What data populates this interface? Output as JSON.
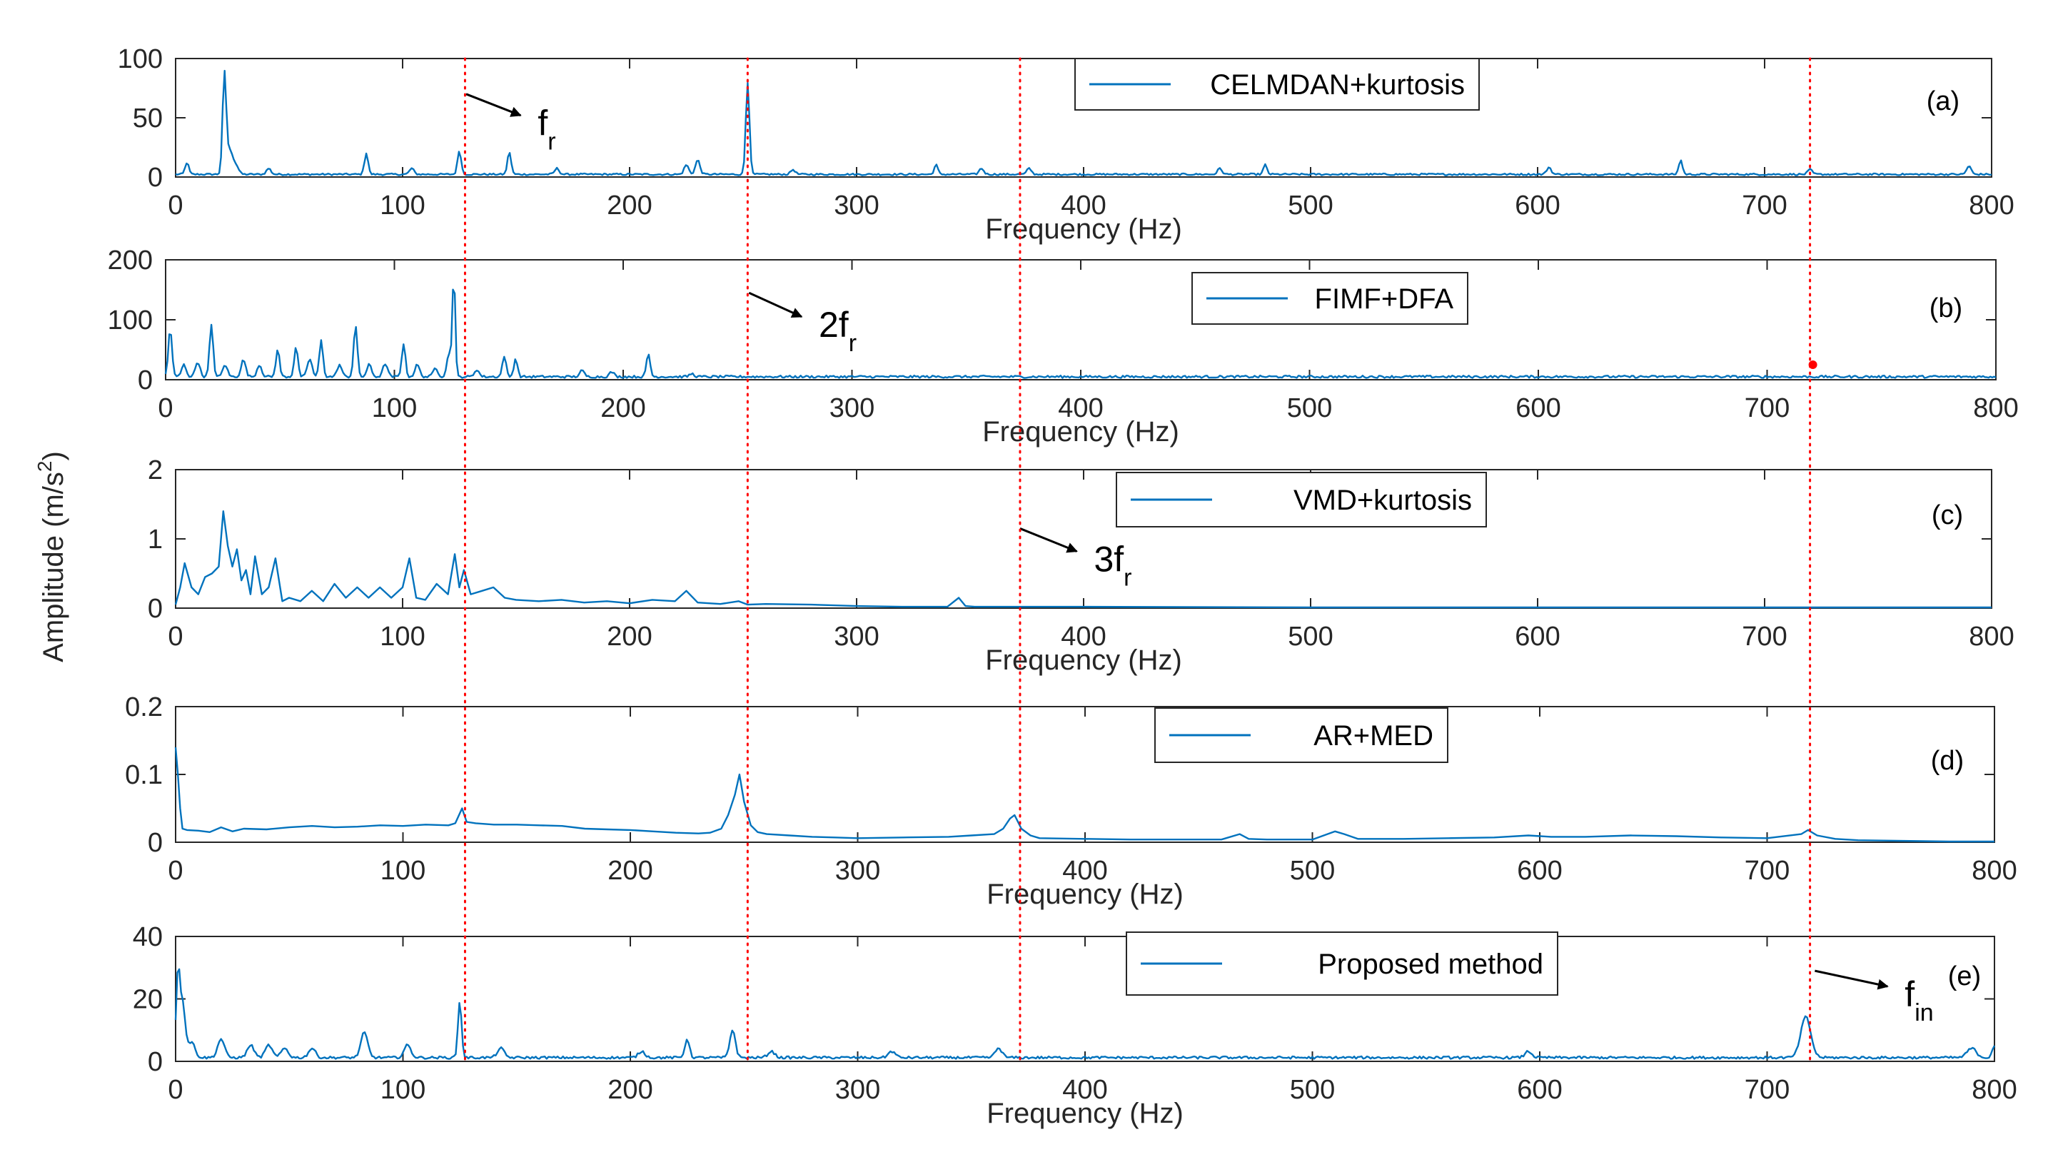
{
  "chart_data": {
    "type": "line",
    "ylabel": "Amplitude (m/s",
    "ylabel_sup": "2",
    "ylabel_close": ")",
    "series_color": "#0072BD",
    "marker_line_color": "#FF0000",
    "marker_lines_x": [
      127.5,
      252,
      372,
      720
    ],
    "panels": [
      {
        "id": "a",
        "tag": "(a)",
        "legend": "CELMDAN+kurtosis",
        "xlabel": "Frequency (Hz)",
        "xlim": [
          0,
          800
        ],
        "ylim": [
          0,
          100
        ],
        "xticks": [
          0,
          100,
          200,
          300,
          400,
          500,
          600,
          700,
          800
        ],
        "yticks": [
          0,
          50,
          100
        ],
        "baseline": 1.5,
        "noise": 1.5,
        "peaks": [
          [
            5,
            10,
            0.8
          ],
          [
            21.5,
            82,
            0.8
          ],
          [
            24,
            20,
            1.5
          ],
          [
            27,
            5,
            1
          ],
          [
            41,
            5,
            1
          ],
          [
            84,
            18,
            0.8
          ],
          [
            104,
            5,
            1
          ],
          [
            125,
            20,
            0.8
          ],
          [
            147,
            19,
            0.8
          ],
          [
            168,
            5,
            1
          ],
          [
            225,
            8,
            1
          ],
          [
            230,
            12,
            1
          ],
          [
            252,
            78,
            0.8
          ],
          [
            272,
            4,
            1
          ],
          [
            335,
            8,
            0.8
          ],
          [
            355,
            5,
            1
          ],
          [
            376,
            5,
            1
          ],
          [
            460,
            5,
            1
          ],
          [
            480,
            8,
            0.8
          ],
          [
            605,
            6,
            1
          ],
          [
            663,
            12,
            0.8
          ],
          [
            720,
            4,
            1
          ],
          [
            790,
            7,
            1
          ]
        ],
        "annotation": {
          "text": "f",
          "sub": "r",
          "arrow_from": [
            128,
            70
          ],
          "arrow_to": [
            152,
            52
          ]
        }
      },
      {
        "id": "b",
        "tag": "(b)",
        "legend": "FIMF+DFA",
        "xlabel": "Frequency (Hz)",
        "xlim": [
          0,
          800
        ],
        "ylim": [
          0,
          200
        ],
        "xticks": [
          0,
          100,
          200,
          300,
          400,
          500,
          600,
          700,
          800
        ],
        "yticks": [
          0,
          100,
          200
        ],
        "baseline": 3,
        "noise": 4,
        "peaks": [
          [
            2,
            80,
            0.8
          ],
          [
            8,
            20,
            1
          ],
          [
            14,
            25,
            1
          ],
          [
            20,
            85,
            0.8
          ],
          [
            26,
            20,
            1
          ],
          [
            34,
            28,
            1
          ],
          [
            41,
            20,
            1
          ],
          [
            49,
            45,
            0.8
          ],
          [
            57,
            50,
            0.8
          ],
          [
            63,
            30,
            1
          ],
          [
            68,
            60,
            0.8
          ],
          [
            76,
            20,
            1
          ],
          [
            83,
            85,
            0.8
          ],
          [
            89,
            20,
            1
          ],
          [
            96,
            22,
            1
          ],
          [
            104,
            55,
            0.8
          ],
          [
            110,
            20,
            1
          ],
          [
            118,
            15,
            1
          ],
          [
            124,
            40,
            1
          ],
          [
            126,
            170,
            0.6
          ],
          [
            136,
            12,
            1
          ],
          [
            148,
            35,
            0.8
          ],
          [
            153,
            30,
            0.8
          ],
          [
            182,
            10,
            1
          ],
          [
            195,
            8,
            1
          ],
          [
            211,
            38,
            0.8
          ],
          [
            230,
            5,
            1
          ]
        ],
        "dot": [
          720,
          25
        ],
        "annotation": {
          "text": "2f",
          "sub": "r",
          "arrow_from": [
            255,
            145
          ],
          "arrow_to": [
            278,
            105
          ]
        }
      },
      {
        "id": "c",
        "tag": "(c)",
        "legend": "VMD+kurtosis",
        "xlabel": "Frequency (Hz)",
        "xlim": [
          0,
          800
        ],
        "ylim": [
          0,
          2
        ],
        "xticks": [
          0,
          100,
          200,
          300,
          400,
          500,
          600,
          700,
          800
        ],
        "yticks": [
          0,
          1,
          2
        ],
        "x": [
          0,
          2,
          4,
          7,
          10,
          13,
          16,
          19,
          21,
          23,
          25,
          27,
          29,
          31,
          33,
          35,
          38,
          41,
          44,
          47,
          50,
          55,
          60,
          65,
          70,
          75,
          80,
          85,
          90,
          95,
          100,
          103,
          106,
          110,
          115,
          120,
          123,
          125,
          127,
          130,
          135,
          140,
          145,
          150,
          160,
          170,
          180,
          190,
          200,
          210,
          220,
          225,
          230,
          240,
          248,
          252,
          260,
          280,
          300,
          320,
          340,
          345,
          348,
          352,
          360,
          380,
          400,
          500,
          600,
          700,
          800
        ],
        "y": [
          0.05,
          0.3,
          0.65,
          0.3,
          0.2,
          0.45,
          0.5,
          0.6,
          1.4,
          0.9,
          0.6,
          0.85,
          0.4,
          0.55,
          0.2,
          0.75,
          0.2,
          0.3,
          0.72,
          0.1,
          0.15,
          0.1,
          0.25,
          0.1,
          0.35,
          0.15,
          0.3,
          0.15,
          0.3,
          0.15,
          0.3,
          0.72,
          0.15,
          0.12,
          0.35,
          0.2,
          0.78,
          0.3,
          0.55,
          0.2,
          0.25,
          0.3,
          0.15,
          0.12,
          0.1,
          0.12,
          0.08,
          0.1,
          0.07,
          0.12,
          0.1,
          0.25,
          0.08,
          0.06,
          0.1,
          0.05,
          0.06,
          0.05,
          0.03,
          0.02,
          0.02,
          0.15,
          0.03,
          0.02,
          0.02,
          0.02,
          0.02,
          0.01,
          0.01,
          0.01,
          0.01
        ],
        "annotation": {
          "text": "3f",
          "sub": "r",
          "arrow_from": [
            372,
            1.15
          ],
          "arrow_to": [
            397,
            0.82
          ]
        }
      },
      {
        "id": "d",
        "tag": "(d)",
        "legend": "AR+MED",
        "xlabel": "Frequency (Hz)",
        "xlim": [
          0,
          800
        ],
        "ylim": [
          0,
          0.2
        ],
        "xticks": [
          0,
          100,
          200,
          300,
          400,
          500,
          600,
          700,
          800
        ],
        "yticks": [
          0,
          0.1,
          0.2
        ],
        "x": [
          0,
          1,
          2,
          3,
          5,
          10,
          15,
          20,
          25,
          30,
          40,
          50,
          60,
          70,
          80,
          90,
          100,
          110,
          120,
          123,
          126,
          128,
          132,
          140,
          150,
          160,
          170,
          180,
          190,
          200,
          210,
          220,
          230,
          235,
          240,
          243,
          246,
          248,
          250,
          253,
          256,
          260,
          270,
          280,
          290,
          300,
          320,
          340,
          350,
          360,
          364,
          367,
          369,
          372,
          376,
          380,
          400,
          420,
          440,
          460,
          468,
          472,
          480,
          500,
          505,
          510,
          514,
          520,
          540,
          560,
          580,
          595,
          605,
          620,
          640,
          660,
          680,
          700,
          715,
          718,
          722,
          730,
          740,
          760,
          780,
          800
        ],
        "y": [
          0.14,
          0.1,
          0.05,
          0.02,
          0.018,
          0.017,
          0.015,
          0.022,
          0.016,
          0.02,
          0.019,
          0.022,
          0.024,
          0.022,
          0.023,
          0.025,
          0.024,
          0.026,
          0.025,
          0.028,
          0.05,
          0.03,
          0.028,
          0.026,
          0.026,
          0.025,
          0.024,
          0.02,
          0.019,
          0.018,
          0.016,
          0.014,
          0.013,
          0.014,
          0.02,
          0.04,
          0.07,
          0.1,
          0.06,
          0.025,
          0.015,
          0.012,
          0.01,
          0.008,
          0.007,
          0.006,
          0.007,
          0.008,
          0.01,
          0.012,
          0.02,
          0.035,
          0.04,
          0.02,
          0.01,
          0.006,
          0.005,
          0.004,
          0.004,
          0.004,
          0.012,
          0.005,
          0.004,
          0.004,
          0.01,
          0.016,
          0.012,
          0.005,
          0.005,
          0.006,
          0.007,
          0.01,
          0.008,
          0.008,
          0.01,
          0.009,
          0.007,
          0.006,
          0.012,
          0.018,
          0.01,
          0.005,
          0.003,
          0.002,
          0.001,
          0.001
        ],
        "annotation": null
      },
      {
        "id": "e",
        "tag": "(e)",
        "legend": "Proposed method",
        "xlabel": "Frequency (Hz)",
        "xlim": [
          0,
          800
        ],
        "ylim": [
          0,
          40
        ],
        "xticks": [
          0,
          100,
          200,
          300,
          400,
          500,
          600,
          700,
          800
        ],
        "yticks": [
          0,
          20,
          40
        ],
        "baseline": 0.8,
        "noise": 0.8,
        "peaks": [
          [
            1,
            25,
            0.8
          ],
          [
            3,
            18,
            1.2
          ],
          [
            7,
            5,
            1.5
          ],
          [
            20,
            6,
            1.5
          ],
          [
            33,
            4,
            1.5
          ],
          [
            41,
            4,
            1.5
          ],
          [
            48,
            3,
            1.5
          ],
          [
            60,
            3,
            1.5
          ],
          [
            83,
            8,
            1.5
          ],
          [
            102,
            4,
            1.5
          ],
          [
            125,
            18,
            0.8
          ],
          [
            143,
            3,
            1.5
          ],
          [
            205,
            2,
            1.5
          ],
          [
            225,
            6,
            1
          ],
          [
            245,
            9,
            1.2
          ],
          [
            262,
            2,
            1.5
          ],
          [
            315,
            2,
            1.5
          ],
          [
            362,
            3,
            1.5
          ],
          [
            595,
            2,
            1.5
          ],
          [
            717,
            13,
            2.2
          ],
          [
            790,
            3,
            2
          ],
          [
            800,
            4,
            1
          ]
        ],
        "annotation": {
          "text": "f",
          "sub": "in",
          "arrow_from": [
            721,
            29
          ],
          "arrow_to": [
            753,
            24
          ]
        }
      }
    ]
  }
}
